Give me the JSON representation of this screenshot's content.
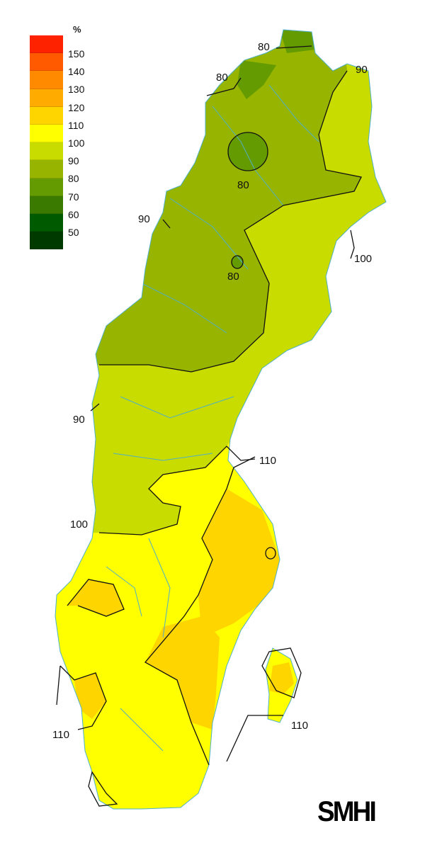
{
  "legend": {
    "title": "%",
    "labels": [
      "150",
      "140",
      "130",
      "120",
      "110",
      "100",
      "90",
      "80",
      "70",
      "60",
      "50"
    ],
    "colors": [
      "#ff2200",
      "#ff5a00",
      "#ff8a00",
      "#ffab00",
      "#ffd500",
      "#ffff00",
      "#c8dc00",
      "#96b400",
      "#649b00",
      "#3a7a00",
      "#005a00",
      "#003a00"
    ]
  },
  "map": {
    "region_colors": {
      "land_100_110": "#ffff00",
      "band_90_100": "#c8dc00",
      "band_80_90": "#96b400",
      "band_70_80": "#649b00",
      "band_110_120": "#ffd500",
      "water": "#4fb0c6"
    },
    "contour_labels": [
      "80",
      "80",
      "90",
      "80",
      "90",
      "100",
      "80",
      "90",
      "110",
      "100",
      "110",
      "110"
    ]
  },
  "logo": "SMHI"
}
